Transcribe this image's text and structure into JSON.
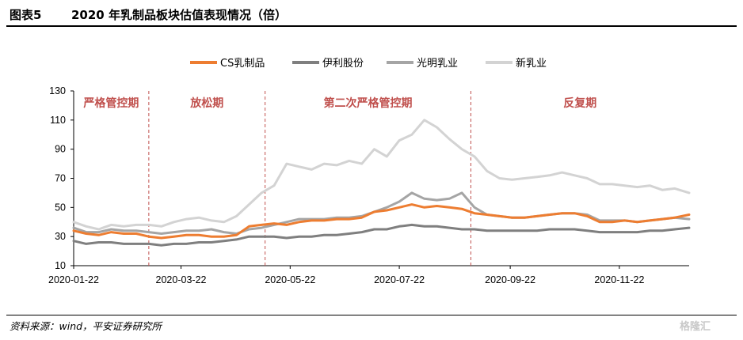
{
  "header": {
    "figure_label": "图表5",
    "title": "2020 年乳制品板块估值表现情况（倍）"
  },
  "footer": {
    "source": "资料来源：wind，平安证券研究所"
  },
  "watermark": {
    "text": "格隆汇"
  },
  "colors": {
    "cs_dairy": "#ed7d31",
    "yili": "#7f7f7f",
    "guangming": "#a5a5a5",
    "xinruye": "#d3d3d3",
    "period_text": "#c0504d",
    "divider": "#c0504d"
  },
  "chart_data": {
    "type": "line",
    "title": "2020 年乳制品板块估值表现情况（倍）",
    "xlabel": "",
    "ylabel": "",
    "ylim": [
      10,
      130
    ],
    "yticks": [
      10,
      30,
      50,
      70,
      90,
      110,
      130
    ],
    "x_tick_labels": [
      "2020-01-22",
      "2020-03-22",
      "2020-05-22",
      "2020-07-22",
      "2020-09-22",
      "2020-11-22"
    ],
    "xlim": [
      "2020-01-22",
      "2020-12-31"
    ],
    "grid": false,
    "legend_position": "top",
    "dividers": [
      "2020-03-04",
      "2020-05-08",
      "2020-08-31"
    ],
    "periods": [
      {
        "label": "严格管控期",
        "start": "2020-01-22",
        "end": "2020-03-04"
      },
      {
        "label": "放松期",
        "start": "2020-03-04",
        "end": "2020-05-08"
      },
      {
        "label": "第二次严格管控期",
        "start": "2020-05-08",
        "end": "2020-08-31"
      },
      {
        "label": "反复期",
        "start": "2020-08-31",
        "end": "2020-12-31"
      }
    ],
    "x": [
      "2020-01-22",
      "2020-01-29",
      "2020-02-05",
      "2020-02-12",
      "2020-02-19",
      "2020-02-26",
      "2020-03-04",
      "2020-03-11",
      "2020-03-18",
      "2020-03-25",
      "2020-04-01",
      "2020-04-08",
      "2020-04-15",
      "2020-04-22",
      "2020-04-29",
      "2020-05-06",
      "2020-05-13",
      "2020-05-20",
      "2020-05-27",
      "2020-06-03",
      "2020-06-10",
      "2020-06-17",
      "2020-06-24",
      "2020-07-01",
      "2020-07-08",
      "2020-07-15",
      "2020-07-22",
      "2020-07-29",
      "2020-08-05",
      "2020-08-12",
      "2020-08-19",
      "2020-08-26",
      "2020-09-02",
      "2020-09-09",
      "2020-09-16",
      "2020-09-23",
      "2020-09-30",
      "2020-10-07",
      "2020-10-14",
      "2020-10-21",
      "2020-10-28",
      "2020-11-04",
      "2020-11-11",
      "2020-11-18",
      "2020-11-25",
      "2020-12-02",
      "2020-12-09",
      "2020-12-16",
      "2020-12-23",
      "2020-12-31"
    ],
    "series": [
      {
        "name": "CS乳制品",
        "color_key": "cs_dairy",
        "values": [
          34,
          32,
          31,
          33,
          32,
          32,
          30,
          29,
          30,
          31,
          31,
          30,
          30,
          31,
          37,
          38,
          39,
          38,
          40,
          41,
          41,
          42,
          42,
          43,
          47,
          48,
          50,
          52,
          50,
          51,
          50,
          49,
          46,
          45,
          44,
          43,
          43,
          44,
          45,
          46,
          46,
          44,
          40,
          40,
          41,
          40,
          41,
          42,
          43,
          45
        ]
      },
      {
        "name": "伊利股份",
        "color_key": "yili",
        "values": [
          27,
          25,
          26,
          26,
          25,
          25,
          25,
          24,
          25,
          25,
          26,
          26,
          27,
          28,
          30,
          30,
          30,
          29,
          30,
          30,
          31,
          31,
          32,
          33,
          35,
          35,
          37,
          38,
          37,
          37,
          36,
          35,
          35,
          34,
          34,
          34,
          34,
          34,
          35,
          35,
          35,
          34,
          33,
          33,
          33,
          33,
          34,
          34,
          35,
          36
        ]
      },
      {
        "name": "光明乳业",
        "color_key": "guangming",
        "values": [
          36,
          33,
          33,
          35,
          34,
          34,
          33,
          32,
          33,
          34,
          34,
          35,
          33,
          32,
          35,
          36,
          38,
          40,
          42,
          42,
          42,
          43,
          43,
          44,
          47,
          50,
          54,
          60,
          56,
          55,
          56,
          60,
          50,
          45,
          44,
          43,
          43,
          44,
          45,
          46,
          46,
          45,
          41,
          41,
          41,
          40,
          41,
          42,
          43,
          42
        ]
      },
      {
        "name": "新乳业",
        "color_key": "xinruye",
        "values": [
          40,
          37,
          35,
          38,
          37,
          38,
          38,
          37,
          40,
          42,
          43,
          41,
          40,
          44,
          52,
          60,
          65,
          80,
          78,
          76,
          80,
          79,
          82,
          80,
          90,
          85,
          96,
          100,
          110,
          105,
          97,
          90,
          85,
          75,
          70,
          69,
          70,
          71,
          72,
          74,
          72,
          70,
          66,
          66,
          65,
          64,
          65,
          62,
          63,
          60
        ]
      }
    ]
  }
}
